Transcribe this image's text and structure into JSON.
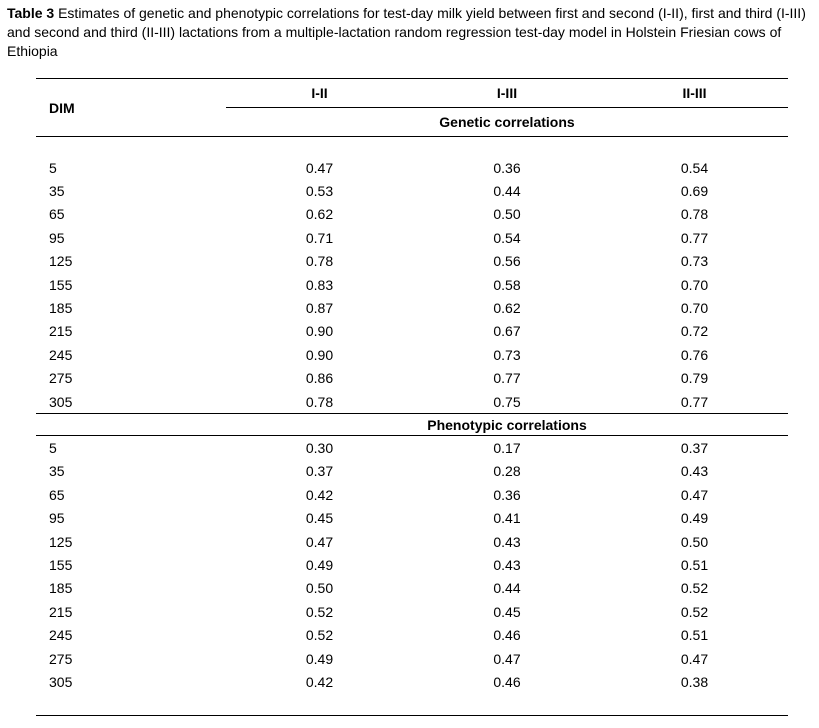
{
  "caption": {
    "label": "Table 3",
    "text": "Estimates of genetic and phenotypic correlations for test-day milk yield between first and second (I-II), first and third (I-III) and second and third (II-III) lactations from a multiple-lactation random regression test-day model in Holstein Friesian cows of Ethiopia"
  },
  "table": {
    "row_header": "DIM",
    "columns": [
      "I-II",
      "I-III",
      "II-III"
    ],
    "sections": [
      {
        "title": "Genetic correlations",
        "rows": [
          {
            "dim": "5",
            "values": [
              "0.47",
              "0.36",
              "0.54"
            ]
          },
          {
            "dim": "35",
            "values": [
              "0.53",
              "0.44",
              "0.69"
            ]
          },
          {
            "dim": "65",
            "values": [
              "0.62",
              "0.50",
              "0.78"
            ]
          },
          {
            "dim": "95",
            "values": [
              "0.71",
              "0.54",
              "0.77"
            ]
          },
          {
            "dim": "125",
            "values": [
              "0.78",
              "0.56",
              "0.73"
            ]
          },
          {
            "dim": "155",
            "values": [
              "0.83",
              "0.58",
              "0.70"
            ]
          },
          {
            "dim": "185",
            "values": [
              "0.87",
              "0.62",
              "0.70"
            ]
          },
          {
            "dim": "215",
            "values": [
              "0.90",
              "0.67",
              "0.72"
            ]
          },
          {
            "dim": "245",
            "values": [
              "0.90",
              "0.73",
              "0.76"
            ]
          },
          {
            "dim": "275",
            "values": [
              "0.86",
              "0.77",
              "0.79"
            ]
          },
          {
            "dim": "305",
            "values": [
              "0.78",
              "0.75",
              "0.77"
            ]
          }
        ]
      },
      {
        "title": "Phenotypic correlations",
        "rows": [
          {
            "dim": "5",
            "values": [
              "0.30",
              "0.17",
              "0.37"
            ]
          },
          {
            "dim": "35",
            "values": [
              "0.37",
              "0.28",
              "0.43"
            ]
          },
          {
            "dim": "65",
            "values": [
              "0.42",
              "0.36",
              "0.47"
            ]
          },
          {
            "dim": "95",
            "values": [
              "0.45",
              "0.41",
              "0.49"
            ]
          },
          {
            "dim": "125",
            "values": [
              "0.47",
              "0.43",
              "0.50"
            ]
          },
          {
            "dim": "155",
            "values": [
              "0.49",
              "0.43",
              "0.51"
            ]
          },
          {
            "dim": "185",
            "values": [
              "0.50",
              "0.44",
              "0.52"
            ]
          },
          {
            "dim": "215",
            "values": [
              "0.52",
              "0.45",
              "0.52"
            ]
          },
          {
            "dim": "245",
            "values": [
              "0.52",
              "0.46",
              "0.51"
            ]
          },
          {
            "dim": "275",
            "values": [
              "0.49",
              "0.47",
              "0.47"
            ]
          },
          {
            "dim": "305",
            "values": [
              "0.42",
              "0.46",
              "0.38"
            ]
          }
        ]
      }
    ]
  },
  "colors": {
    "text": "#000000",
    "background": "#ffffff",
    "rule": "#000000"
  }
}
